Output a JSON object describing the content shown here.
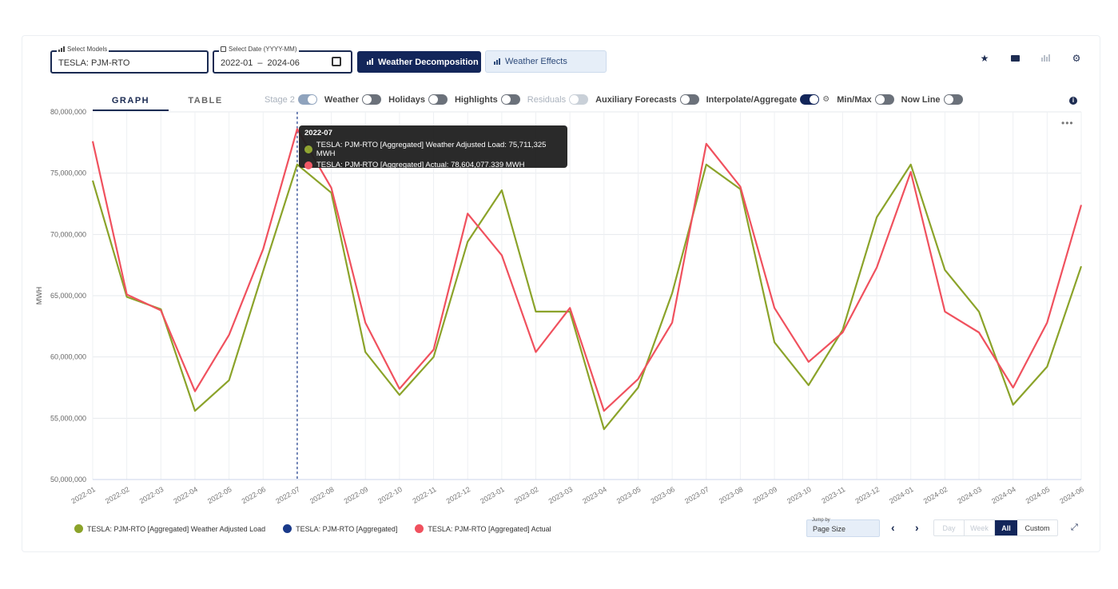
{
  "controls": {
    "models_label": "Select Models",
    "models_value": "TESLA: PJM-RTO",
    "date_label": "Select Date (YYYY-MM)",
    "date_start": "2022-01",
    "date_sep": "–",
    "date_end": "2024-06",
    "btn_decomposition": "Weather Decomposition",
    "btn_effects": "Weather Effects"
  },
  "tabs": {
    "graph": "GRAPH",
    "table": "TABLE"
  },
  "toggles": {
    "stage2": "Stage 2",
    "weather": "Weather",
    "holidays": "Holidays",
    "highlights": "Highlights",
    "residuals": "Residuals",
    "auxiliary": "Auxiliary Forecasts",
    "interpolate": "Interpolate/Aggregate",
    "minmax": "Min/Max",
    "nowline": "Now Line"
  },
  "icons": {
    "star": "star-icon",
    "mail": "mail-icon",
    "chart": "bar-chart-icon",
    "settings": "gear-icon",
    "info": "info-icon",
    "more": "more-icon",
    "calendar": "calendar-icon",
    "expand": "expand-icon"
  },
  "tooltip": {
    "title": "2022-07",
    "row1": "TESLA: PJM-RTO [Aggregated] Weather Adjusted Load: 75,711,325 MWH",
    "row2": "TESLA: PJM-RTO [Aggregated] Actual: 78,604,077.339 MWH"
  },
  "legend": [
    {
      "label": "TESLA: PJM-RTO [Aggregated] Weather Adjusted Load",
      "color": "#8ba32a"
    },
    {
      "label": "TESLA: PJM-RTO [Aggregated]",
      "color": "#1a3a8a"
    },
    {
      "label": "TESLA: PJM-RTO [Aggregated] Actual",
      "color": "#f0515e"
    }
  ],
  "bottom": {
    "jump_label": "Jump by",
    "jump_value": "Page Size",
    "day": "Day",
    "week": "Week",
    "all": "All",
    "custom": "Custom"
  },
  "chart_data": {
    "type": "line",
    "ylabel": "MWH",
    "xlabel": "",
    "title": "",
    "ylim": [
      50000000,
      80000000
    ],
    "yticks": [
      50000000,
      55000000,
      60000000,
      65000000,
      70000000,
      75000000,
      80000000
    ],
    "ytick_labels": [
      "50,000,000",
      "55,000,000",
      "60,000,000",
      "65,000,000",
      "70,000,000",
      "75,000,000",
      "80,000,000"
    ],
    "crosshair": "2022-07",
    "x": [
      "2022-01",
      "2022-02",
      "2022-03",
      "2022-04",
      "2022-05",
      "2022-06",
      "2022-07",
      "2022-08",
      "2022-09",
      "2022-10",
      "2022-11",
      "2022-12",
      "2023-01",
      "2023-02",
      "2023-03",
      "2023-04",
      "2023-05",
      "2023-06",
      "2023-07",
      "2023-08",
      "2023-09",
      "2023-10",
      "2023-11",
      "2023-12",
      "2024-01",
      "2024-02",
      "2024-03",
      "2024-04",
      "2024-05",
      "2024-06"
    ],
    "series": [
      {
        "name": "TESLA: PJM-RTO [Aggregated] Weather Adjusted Load",
        "color": "#8ba32a",
        "values": [
          74400000,
          64900000,
          63900000,
          55600000,
          58100000,
          67000000,
          75711325,
          73400000,
          60400000,
          56900000,
          60000000,
          69400000,
          73600000,
          63700000,
          63700000,
          54100000,
          57500000,
          65200000,
          75700000,
          73700000,
          61200000,
          57700000,
          62200000,
          71400000,
          75700000,
          67100000,
          63700000,
          56100000,
          59200000,
          67400000
        ]
      },
      {
        "name": "TESLA: PJM-RTO [Aggregated] Actual",
        "color": "#f0515e",
        "values": [
          77600000,
          65100000,
          63800000,
          57200000,
          61800000,
          68800000,
          78604077.339,
          73800000,
          62800000,
          57400000,
          60600000,
          71700000,
          68300000,
          60400000,
          64000000,
          55600000,
          58200000,
          62800000,
          77400000,
          73900000,
          64000000,
          59600000,
          62000000,
          67300000,
          75100000,
          63700000,
          62000000,
          57500000,
          62800000,
          72400000
        ]
      }
    ]
  }
}
